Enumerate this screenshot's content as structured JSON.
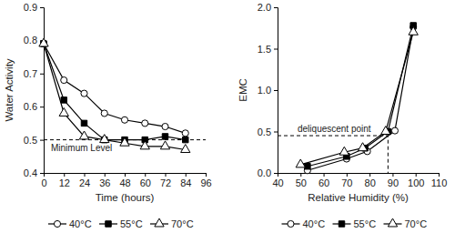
{
  "chart_data": [
    {
      "type": "line",
      "x_label": "Time (hours)",
      "y_label": "Water Activity",
      "x": [
        0,
        12,
        24,
        36,
        48,
        60,
        72,
        84
      ],
      "xlim": [
        0,
        96
      ],
      "xticks": [
        0,
        12,
        24,
        36,
        48,
        60,
        72,
        84,
        96
      ],
      "ylim": [
        0.4,
        0.9
      ],
      "yticks": [
        0.4,
        0.5,
        0.6,
        0.7,
        0.8,
        0.9
      ],
      "legend": "bottom",
      "line_style": "solid",
      "series": [
        {
          "name": "40°C",
          "color": "#000000",
          "marker": "open-circle",
          "values": [
            0.79,
            0.68,
            0.64,
            0.58,
            0.56,
            0.55,
            0.54,
            0.52
          ]
        },
        {
          "name": "55°C",
          "color": "#000000",
          "marker": "square",
          "values": [
            0.79,
            0.62,
            0.55,
            0.5,
            0.5,
            0.5,
            0.51,
            0.5
          ]
        },
        {
          "name": "70°C",
          "color": "#000000",
          "marker": "open-triangle",
          "values": [
            0.79,
            0.58,
            0.51,
            0.5,
            0.49,
            0.48,
            0.48,
            0.47
          ]
        }
      ],
      "annotations": [
        {
          "text": "Minimum Level",
          "y": 0.5
        }
      ]
    },
    {
      "type": "line",
      "x_label": "Relative Humidity (%)",
      "y_label": "EMC",
      "xlim": [
        40,
        110
      ],
      "xticks": [
        40,
        50,
        60,
        70,
        80,
        90,
        100,
        110
      ],
      "ylim": [
        0,
        2
      ],
      "yticks": [
        {
          "value": 0,
          "label": "0.0"
        },
        {
          "value": 0.5,
          "label": "0.5"
        },
        {
          "value": 1,
          "label": "1.0"
        },
        {
          "value": 1.5,
          "label": "1.5"
        },
        {
          "value": 2,
          "label": "2.0"
        }
      ],
      "legend": "bottom",
      "line_style": "solid",
      "series": [
        {
          "name": "40°C",
          "color": "#000000",
          "marker": "open-circle",
          "x": [
            53,
            70,
            79,
            91,
            99
          ],
          "values": [
            0.03,
            0.17,
            0.26,
            0.51,
            1.76
          ]
        },
        {
          "name": "55°C",
          "color": "#000000",
          "marker": "square",
          "x": [
            53,
            70,
            78,
            88,
            99
          ],
          "values": [
            0.08,
            0.2,
            0.3,
            0.5,
            1.78
          ]
        },
        {
          "name": "70°C",
          "color": "#000000",
          "marker": "open-triangle",
          "x": [
            50,
            69,
            77,
            87,
            99
          ],
          "values": [
            0.1,
            0.25,
            0.3,
            0.5,
            1.7
          ]
        }
      ],
      "annotations": [
        {
          "text": "deliquescent point",
          "x": 88,
          "y": 0.45
        }
      ]
    }
  ]
}
